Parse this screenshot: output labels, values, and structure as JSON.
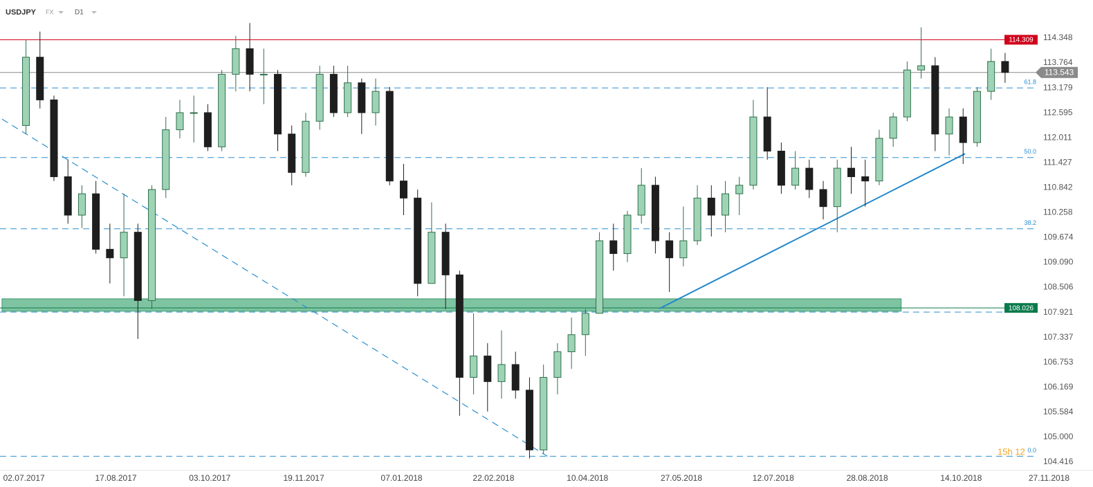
{
  "header": {
    "symbol": "USDJPY",
    "market": "FX",
    "interval": "D1"
  },
  "timer": "15h 12",
  "chart_data": {
    "type": "candlestick",
    "x": [
      "2017-07-03",
      "2017-07-10",
      "2017-07-17",
      "2017-07-24",
      "2017-07-31",
      "2017-08-07",
      "2017-08-14",
      "2017-08-21",
      "2017-08-28",
      "2017-09-04",
      "2017-09-11",
      "2017-09-18",
      "2017-09-25",
      "2017-10-02",
      "2017-10-09",
      "2017-10-16",
      "2017-10-23",
      "2017-10-30",
      "2017-11-06",
      "2017-11-13",
      "2017-11-20",
      "2017-11-27",
      "2017-12-04",
      "2017-12-11",
      "2017-12-18",
      "2017-12-25",
      "2018-01-01",
      "2018-01-08",
      "2018-01-15",
      "2018-01-22",
      "2018-01-29",
      "2018-02-05",
      "2018-02-12",
      "2018-02-19",
      "2018-02-26",
      "2018-03-05",
      "2018-03-12",
      "2018-03-19",
      "2018-03-26",
      "2018-04-02",
      "2018-04-09",
      "2018-04-16",
      "2018-04-23",
      "2018-04-30",
      "2018-05-07",
      "2018-05-14",
      "2018-05-21",
      "2018-05-28",
      "2018-06-04",
      "2018-06-11",
      "2018-06-18",
      "2018-06-25",
      "2018-07-02",
      "2018-07-09",
      "2018-07-16",
      "2018-07-23",
      "2018-07-30",
      "2018-08-06",
      "2018-08-13",
      "2018-08-20",
      "2018-08-27",
      "2018-09-03",
      "2018-09-10",
      "2018-09-17",
      "2018-09-24",
      "2018-10-01",
      "2018-10-08",
      "2018-10-15",
      "2018-10-22",
      "2018-10-29",
      "2018-11-05"
    ],
    "open": [
      112.3,
      113.9,
      112.9,
      111.1,
      110.2,
      110.7,
      109.4,
      109.2,
      109.8,
      108.2,
      110.8,
      112.2,
      112.6,
      112.6,
      111.8,
      113.5,
      114.1,
      113.5,
      113.5,
      112.1,
      111.2,
      112.4,
      113.5,
      112.6,
      113.3,
      112.6,
      113.1,
      111.0,
      110.6,
      108.6,
      109.8,
      108.8,
      106.4,
      106.9,
      106.3,
      106.7,
      106.1,
      104.7,
      106.4,
      107.0,
      107.4,
      107.9,
      109.6,
      109.3,
      110.2,
      110.9,
      109.6,
      109.2,
      109.6,
      110.6,
      110.2,
      110.7,
      110.9,
      112.5,
      111.7,
      110.9,
      111.3,
      110.8,
      110.4,
      111.3,
      111.1,
      111.0,
      112.0,
      112.5,
      113.6,
      113.7,
      112.1,
      112.5,
      111.9,
      113.1,
      113.8
    ],
    "high": [
      114.3,
      114.5,
      113.0,
      111.5,
      110.9,
      111.0,
      110.0,
      110.7,
      110.0,
      110.9,
      112.5,
      112.9,
      113.0,
      112.8,
      113.6,
      114.4,
      114.7,
      114.1,
      113.6,
      112.3,
      112.6,
      113.7,
      113.7,
      113.7,
      113.4,
      113.4,
      113.2,
      111.4,
      110.8,
      110.5,
      110.0,
      108.9,
      107.9,
      107.2,
      107.5,
      107.0,
      106.4,
      106.7,
      107.2,
      107.8,
      108.0,
      109.8,
      110.0,
      110.3,
      111.3,
      111.1,
      109.8,
      110.4,
      110.9,
      110.9,
      111.0,
      111.1,
      112.9,
      113.2,
      111.9,
      111.7,
      111.5,
      111.0,
      111.5,
      111.8,
      111.5,
      112.2,
      112.6,
      113.8,
      114.6,
      113.9,
      112.7,
      112.7,
      113.2,
      114.1,
      114.0
    ],
    "low": [
      112.1,
      112.7,
      111.0,
      110.0,
      109.9,
      109.3,
      108.6,
      108.3,
      107.3,
      108.0,
      110.6,
      112.0,
      111.9,
      111.7,
      111.7,
      113.1,
      113.1,
      112.8,
      111.7,
      110.9,
      111.1,
      112.2,
      112.5,
      112.5,
      112.1,
      112.3,
      110.9,
      110.2,
      108.3,
      108.6,
      108.0,
      105.5,
      106.0,
      105.6,
      105.9,
      105.9,
      104.5,
      104.6,
      106.0,
      106.6,
      106.9,
      107.9,
      108.9,
      109.1,
      110.0,
      109.3,
      108.4,
      109.0,
      109.5,
      109.7,
      109.8,
      110.2,
      110.8,
      111.5,
      110.7,
      110.8,
      110.6,
      110.1,
      109.8,
      110.7,
      110.4,
      110.9,
      111.8,
      112.4,
      113.4,
      111.7,
      111.6,
      111.4,
      111.8,
      112.9,
      113.3
    ],
    "close": [
      113.9,
      112.9,
      111.1,
      110.2,
      110.7,
      109.4,
      109.2,
      109.8,
      108.2,
      110.8,
      112.2,
      112.6,
      112.6,
      111.8,
      113.5,
      114.1,
      113.5,
      113.5,
      112.1,
      111.2,
      112.4,
      113.5,
      112.6,
      113.3,
      112.6,
      113.1,
      111.0,
      110.6,
      108.6,
      109.8,
      108.8,
      106.4,
      106.9,
      106.3,
      106.7,
      106.1,
      104.7,
      106.4,
      107.0,
      107.4,
      107.9,
      109.6,
      109.3,
      110.2,
      110.9,
      109.6,
      109.2,
      109.6,
      110.6,
      110.2,
      110.7,
      110.9,
      112.5,
      111.7,
      110.9,
      111.3,
      110.8,
      110.4,
      111.3,
      111.1,
      111.0,
      112.0,
      112.5,
      113.6,
      113.7,
      112.1,
      112.5,
      111.9,
      113.1,
      113.8,
      113.543
    ],
    "up_color": "#9fd3b5",
    "up_stroke": "#2f6e4c",
    "down_color": "#1e1e1e",
    "xlim": [
      "2017-06-20",
      "2018-12-19"
    ],
    "xticks": [
      {
        "value": "2017-07-02",
        "label": "02.07.2017"
      },
      {
        "value": "2017-08-17",
        "label": "17.08.2017"
      },
      {
        "value": "2017-10-03",
        "label": "03.10.2017"
      },
      {
        "value": "2017-11-19",
        "label": "19.11.2017"
      },
      {
        "value": "2018-01-07",
        "label": "07.01.2018"
      },
      {
        "value": "2018-02-22",
        "label": "22.02.2018"
      },
      {
        "value": "2018-04-10",
        "label": "10.04.2018"
      },
      {
        "value": "2018-05-27",
        "label": "27.05.2018"
      },
      {
        "value": "2018-07-12",
        "label": "12.07.2018"
      },
      {
        "value": "2018-08-28",
        "label": "28.08.2018"
      },
      {
        "value": "2018-10-14",
        "label": "14.10.2018"
      },
      {
        "value": "2018-11-27",
        "label": "27.11.2018"
      }
    ],
    "ylim": [
      104.22,
      115.24
    ],
    "yticks": [
      114.348,
      113.764,
      113.179,
      112.595,
      112.011,
      111.427,
      110.842,
      110.258,
      109.674,
      {
        "value": 109.09,
        "label": "109.090"
      },
      108.506,
      107.921,
      107.337,
      106.753,
      106.169,
      105.584,
      {
        "value": 105,
        "label": "105.000"
      },
      104.416
    ],
    "price_lines": [
      {
        "value": 114.309,
        "color": "#d0021b"
      },
      {
        "value": 108.026,
        "color": "#0b7a4b"
      }
    ],
    "last_price": {
      "value": 113.543,
      "color": "#8a8a8a"
    },
    "fib_levels": [
      {
        "label": "61.8",
        "value": 113.18
      },
      {
        "label": "50.0",
        "value": 111.55
      },
      {
        "label": "38.2",
        "value": 109.88
      },
      {
        "label": "0.0",
        "value": 104.55
      }
    ],
    "dashed_levels": [
      107.93
    ],
    "fib_color": "#2a8fd0",
    "support_zone": {
      "x": [
        "2017-06-21",
        "2018-09-14"
      ],
      "y": [
        107.95,
        108.24
      ],
      "color": "#7fc4a2"
    },
    "trendlines": [
      {
        "x": [
          "2017-06-21",
          "2018-03-21"
        ],
        "y": [
          112.45,
          104.55
        ],
        "dashed": true,
        "color": "#2a8fd0"
      },
      {
        "x": [
          "2018-05-16",
          "2018-10-16"
        ],
        "y": [
          108.01,
          111.64
        ],
        "dashed": false,
        "color": "#1f86cc"
      }
    ]
  }
}
